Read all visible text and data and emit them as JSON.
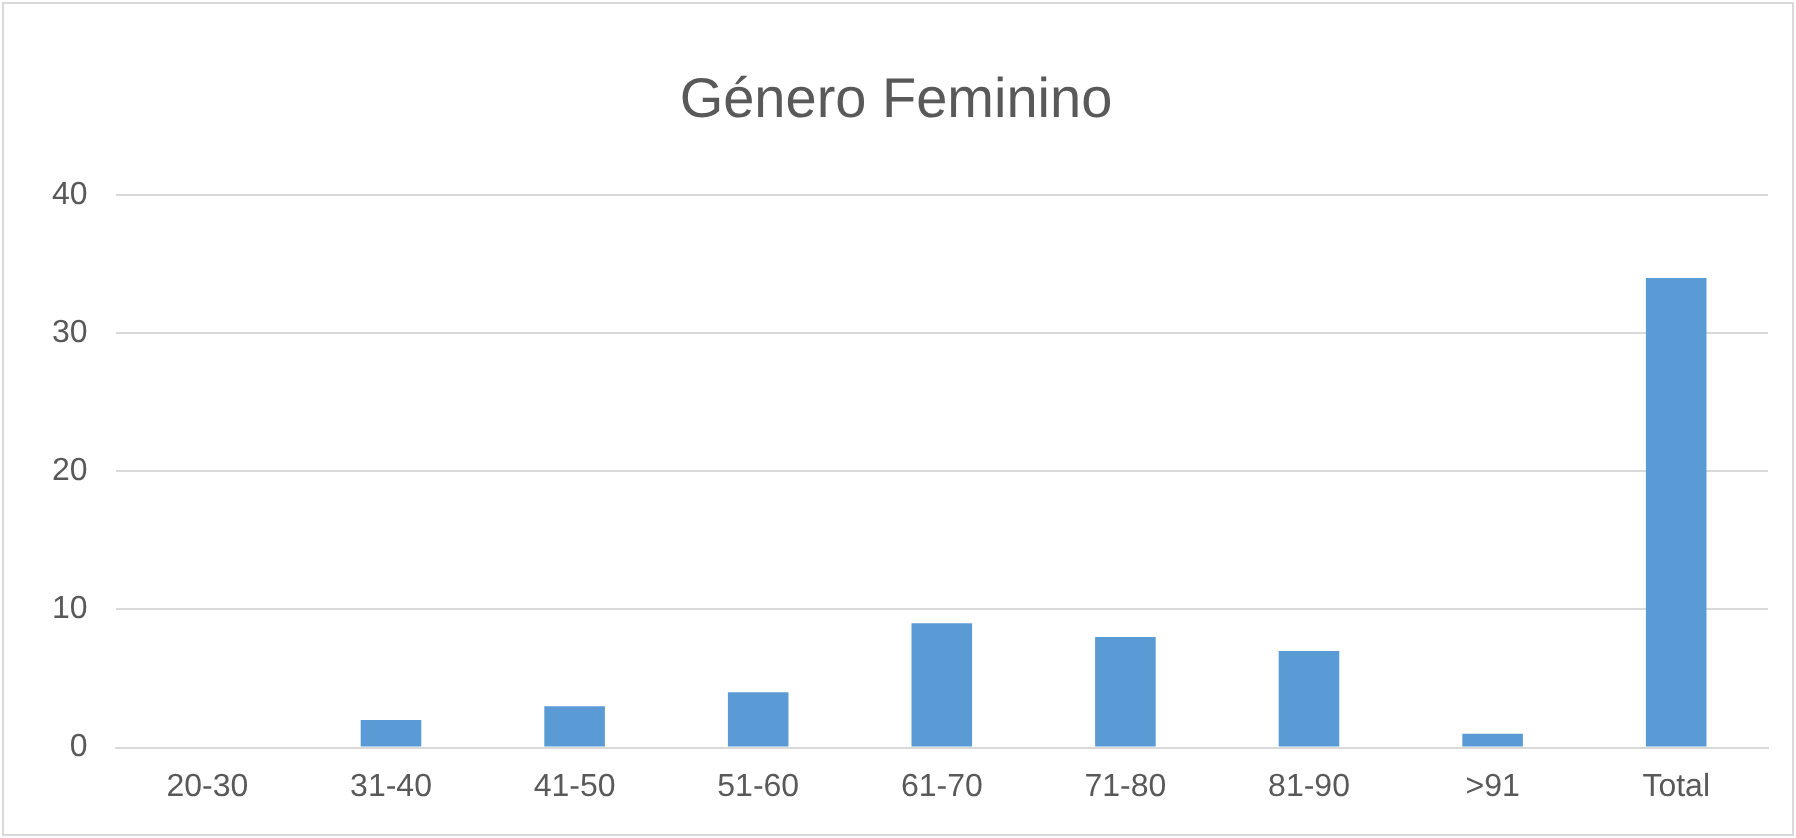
{
  "chart_data": {
    "type": "bar",
    "title": "Género Feminino",
    "categories": [
      "20-30",
      "31-40",
      "41-50",
      "51-60",
      "61-70",
      "71-80",
      "81-90",
      ">91",
      "Total"
    ],
    "values": [
      0,
      2,
      3,
      4,
      9,
      8,
      7,
      1,
      34
    ],
    "color": "#5b9bd5",
    "ylim": [
      0,
      40
    ],
    "yticks": [
      0,
      10,
      20,
      30,
      40
    ],
    "grid": "y",
    "legend": false
  }
}
